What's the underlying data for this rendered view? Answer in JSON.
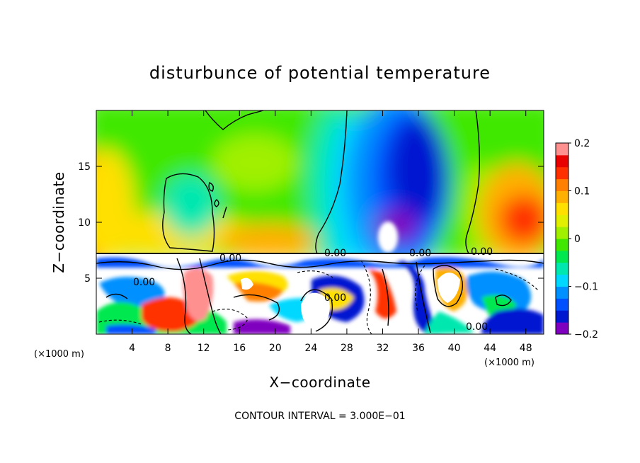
{
  "chart_data": {
    "type": "heatmap",
    "title": "disturbunce of potential temperature",
    "xlabel": "X−coordinate",
    "ylabel": "Z−coordinate",
    "x_unit": "(×1000 m)",
    "y_unit": "(×1000 m)",
    "xlim": [
      0,
      50
    ],
    "ylim": [
      0,
      20
    ],
    "x_ticks": [
      4,
      8,
      12,
      16,
      20,
      24,
      28,
      32,
      36,
      40,
      44,
      48
    ],
    "y_ticks": [
      5,
      10,
      15
    ],
    "colorbar": {
      "range": [
        -0.2,
        0.2
      ],
      "ticks": [
        0.2,
        0.1,
        0,
        -0.1,
        -0.2
      ],
      "tick_labels": [
        "0.2",
        "0.1",
        "0",
        "−0.1",
        "−0.2"
      ],
      "colors": [
        "#8000c0",
        "#0018d0",
        "#0050ff",
        "#0090ff",
        "#00d8ff",
        "#00e8b0",
        "#00e850",
        "#40e800",
        "#a0f000",
        "#e0f000",
        "#ffe000",
        "#ffb000",
        "#ff8000",
        "#ff3000",
        "#e80000",
        "#ff9090"
      ]
    },
    "contour_labels": [
      "0.00",
      "0.00",
      "0.00",
      "0.00",
      "0.00",
      "0.00",
      "0.00"
    ],
    "contour_interval_text": "CONTOUR INTERVAL = 3.000E−01",
    "grid": false
  }
}
